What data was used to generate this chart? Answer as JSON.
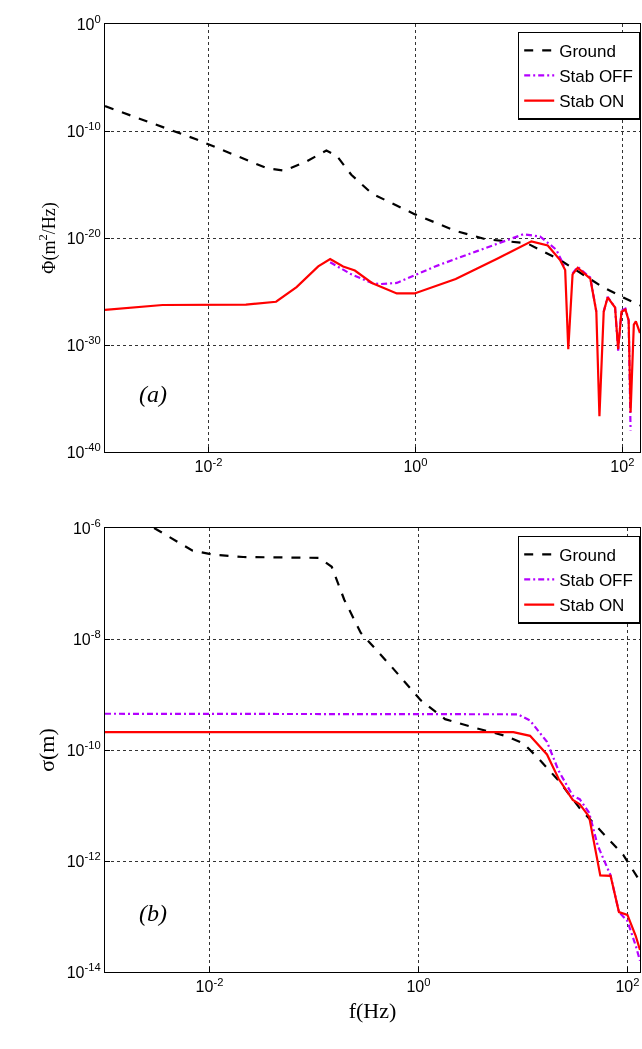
{
  "chart_data": [
    {
      "type": "line",
      "ylabel": "Φ(m$^{2}$/Hz)",
      "log": "xy",
      "grid": true,
      "legend": "top right",
      "xlim": [
        0.001,
        148
      ],
      "ylim": [
        1e-40,
        1
      ],
      "xticks": [
        {
          "value": 0.01,
          "label": "10$^{-2}$"
        },
        {
          "value": 1,
          "label": "10$^{0}$"
        },
        {
          "value": 100,
          "label": "10$^{2}$"
        }
      ],
      "yticks": [
        {
          "value": 1e-40,
          "label": "10$^{-40}$"
        },
        {
          "value": 1e-30,
          "label": "10$^{-30}$"
        },
        {
          "value": 1e-20,
          "label": "10$^{-20}$"
        },
        {
          "value": 1e-10,
          "label": "10$^{-10}$"
        },
        {
          "value": 1,
          "label": "10$^{0}$"
        }
      ],
      "annotations": [
        "(a)"
      ],
      "series": [
        {
          "name": "Ground",
          "color": "#000000",
          "line_style": "dashed",
          "x": [
            0.001,
            0.0076,
            0.037,
            0.054,
            0.087,
            0.138,
            0.174,
            0.24,
            0.38,
            0.98,
            2.45,
            4.8,
            12,
            25,
            65,
            102,
            148
          ],
          "values": [
            2.1e-08,
            1.7e-11,
            3.2e-14,
            2e-14,
            1.3e-13,
            1.5e-12,
            4.7e-13,
            8.1e-15,
            1.4e-16,
            1.7e-18,
            4.6e-20,
            7.6e-21,
            3.2e-21,
            8.7e-23,
            2.5e-25,
            2.8e-26,
            5e-27
          ]
        },
        {
          "name": "Stab OFF",
          "color": "#b400ff",
          "line_style": "dashdot",
          "x": [
            0.15,
            0.24,
            0.38,
            0.46,
            0.66,
            1.55,
            4.0,
            11,
            16,
            23,
            28,
            30,
            33,
            37,
            49,
            56,
            60,
            66,
            72,
            85,
            91,
            98,
            107,
            115,
            120
          ],
          "values": [
            5.5e-23,
            4e-24,
            6.3e-25,
            5e-25,
            6.3e-25,
            2.2e-23,
            6.3e-22,
            2.2e-20,
            1.4e-20,
            8e-22,
            1.5e-23,
            null,
            5e-24,
            2e-23,
            2e-24,
            1.3e-27,
            null,
            1.3e-27,
            3.2e-26,
            3.2e-27,
            3e-31,
            1.6e-27,
            2.5e-27,
            2e-28,
            1e-38
          ]
        },
        {
          "name": "Stab ON",
          "color": "#ff0000",
          "line_style": "solid",
          "x": [
            0.001,
            0.0036,
            0.023,
            0.045,
            0.071,
            0.115,
            0.15,
            0.2,
            0.26,
            0.38,
            0.66,
            0.98,
            2.45,
            6.3,
            13.2,
            19,
            25,
            28,
            30,
            33,
            37,
            49,
            56,
            60,
            66,
            72,
            85,
            91,
            98,
            107,
            115,
            120,
            129,
            135,
            148
          ],
          "values": [
            1.9e-27,
            5.5e-27,
            5.9e-27,
            1.1e-26,
            2.6e-25,
            2.2e-23,
            1.1e-22,
            2.2e-23,
            9.1e-24,
            6.3e-25,
            6.6e-26,
            6.6e-26,
            1.5e-24,
            1.3e-22,
            4.9e-21,
            2e-21,
            8.7e-23,
            1e-23,
            4e-31,
            4e-24,
            1.6e-23,
            1.6e-24,
            1.3e-27,
            2.2e-37,
            1.3e-27,
            2.8e-26,
            3.2e-27,
            4e-31,
            1.3e-27,
            2e-27,
            2e-28,
            5e-37,
            8e-29,
            1.6e-28,
            1.3e-29
          ]
        }
      ]
    },
    {
      "type": "line",
      "xlabel": "f(Hz)",
      "ylabel": "σ(m)",
      "log": "xy",
      "grid": true,
      "legend": "top right",
      "xlim": [
        0.001,
        132
      ],
      "ylim": [
        1e-14,
        1e-06
      ],
      "xticks": [
        {
          "value": 0.01,
          "label": "10$^{-2}$"
        },
        {
          "value": 1,
          "label": "10$^{0}$"
        },
        {
          "value": 100,
          "label": "10$^{2}$"
        }
      ],
      "yticks": [
        {
          "value": 1e-14,
          "label": "10$^{-14}$"
        },
        {
          "value": 1e-12,
          "label": "10$^{-12}$"
        },
        {
          "value": 1e-10,
          "label": "10$^{-10}$"
        },
        {
          "value": 1e-08,
          "label": "10$^{-8}$"
        },
        {
          "value": 1e-06,
          "label": "10$^{-6}$"
        }
      ],
      "annotations": [
        "(b)"
      ],
      "series": [
        {
          "name": "Ground",
          "color": "#000000",
          "line_style": "dashed",
          "x": [
            0.00295,
            0.0069,
            0.011,
            0.021,
            0.112,
            0.148,
            0.195,
            0.28,
            0.55,
            1.05,
            1.8,
            3.5,
            6.8,
            10.2,
            14,
            22,
            35,
            58,
            91,
            132
          ],
          "values": [
            1e-06,
            3.9e-07,
            3.3e-07,
            3e-07,
            2.9e-07,
            2e-07,
            5.1e-08,
            1.3e-08,
            3.2e-09,
            7.9e-10,
            3.6e-10,
            2.5e-10,
            1.8e-10,
            1.3e-10,
            7.1e-11,
            2.8e-11,
            8.9e-12,
            3.2e-12,
            1.3e-12,
            4.3e-13
          ]
        },
        {
          "name": "Stab OFF",
          "color": "#b400ff",
          "line_style": "dashdot",
          "x": [
            0.001,
            8.9,
            11.7,
            17,
            22,
            30,
            35,
            43,
            52,
            69,
            83,
            100,
            120,
            132
          ],
          "values": [
            4.5e-10,
            4.4e-10,
            3.4e-10,
            1.4e-10,
            4.2e-11,
            1.5e-11,
            1.3e-11,
            7.4e-12,
            1.9e-12,
            5.5e-13,
            1.2e-13,
            8.3e-14,
            3e-14,
            1.6e-14
          ]
        },
        {
          "name": "Stab ON",
          "color": "#ff0000",
          "line_style": "solid",
          "x": [
            0.001,
            8.1,
            11.7,
            17,
            22,
            30,
            35,
            43,
            55,
            69,
            83,
            100,
            120,
            132
          ],
          "values": [
            2.1e-10,
            2.1e-10,
            1.8e-10,
            8.3e-11,
            3e-11,
            1.26e-11,
            1.05e-11,
            6.3e-12,
            5.5e-13,
            5.4e-13,
            1.2e-13,
            1.07e-13,
            4.5e-14,
            2.5e-14
          ]
        }
      ]
    }
  ]
}
